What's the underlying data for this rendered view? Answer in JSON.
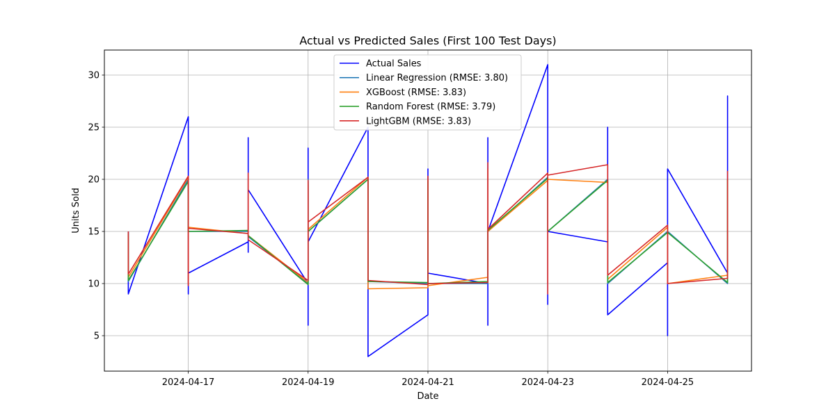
{
  "chart_data": {
    "type": "line",
    "title": "Actual vs Predicted Sales (First 100 Test Days)",
    "xlabel": "Date",
    "ylabel": "Units Sold",
    "xlim": [
      "2024-04-15T14:24",
      "2024-04-26T09:36"
    ],
    "ylim": [
      1.6,
      32.4
    ],
    "x_ticks": [
      "2024-04-17",
      "2024-04-19",
      "2024-04-21",
      "2024-04-23",
      "2024-04-25"
    ],
    "y_ticks": [
      5,
      10,
      15,
      20,
      25,
      30
    ],
    "grid": true,
    "legend_position": "top-center",
    "series": [
      {
        "name": "Actual Sales",
        "color": "#0000ff",
        "points": [
          [
            "2024-04-16",
            15
          ],
          [
            "2024-04-16",
            9
          ],
          [
            "2024-04-17",
            26
          ],
          [
            "2024-04-17",
            9
          ],
          [
            "2024-04-17",
            11
          ],
          [
            "2024-04-18",
            14
          ],
          [
            "2024-04-18",
            24
          ],
          [
            "2024-04-18",
            13
          ],
          [
            "2024-04-18",
            19
          ],
          [
            "2024-04-19",
            10
          ],
          [
            "2024-04-19",
            23
          ],
          [
            "2024-04-19",
            6
          ],
          [
            "2024-04-19",
            14
          ],
          [
            "2024-04-20",
            25
          ],
          [
            "2024-04-20",
            5
          ],
          [
            "2024-04-20",
            10
          ],
          [
            "2024-04-20",
            3
          ],
          [
            "2024-04-21",
            7
          ],
          [
            "2024-04-21",
            21
          ],
          [
            "2024-04-21",
            11
          ],
          [
            "2024-04-22",
            10
          ],
          [
            "2024-04-22",
            24
          ],
          [
            "2024-04-22",
            6
          ],
          [
            "2024-04-22",
            15
          ],
          [
            "2024-04-23",
            31
          ],
          [
            "2024-04-23",
            8
          ],
          [
            "2024-04-23",
            15
          ],
          [
            "2024-04-24",
            14
          ],
          [
            "2024-04-24",
            25
          ],
          [
            "2024-04-24",
            9
          ],
          [
            "2024-04-24",
            7
          ],
          [
            "2024-04-25",
            12
          ],
          [
            "2024-04-25",
            5
          ],
          [
            "2024-04-25",
            19
          ],
          [
            "2024-04-25",
            21
          ],
          [
            "2024-04-26",
            11
          ],
          [
            "2024-04-26",
            28
          ],
          [
            "2024-04-26",
            10.5
          ]
        ]
      },
      {
        "name": "Linear Regression (RMSE: 3.80)",
        "color": "#1f77b4",
        "points": [
          [
            "2024-04-16",
            15
          ],
          [
            "2024-04-16",
            10.2
          ],
          [
            "2024-04-17",
            20
          ],
          [
            "2024-04-17",
            15
          ],
          [
            "2024-04-18",
            15
          ],
          [
            "2024-04-18",
            14.5
          ],
          [
            "2024-04-19",
            10
          ],
          [
            "2024-04-19",
            20
          ],
          [
            "2024-04-19",
            15
          ],
          [
            "2024-04-20",
            20
          ],
          [
            "2024-04-20",
            10.2
          ],
          [
            "2024-04-21",
            10
          ],
          [
            "2024-04-21",
            20
          ],
          [
            "2024-04-21",
            10
          ],
          [
            "2024-04-22",
            10
          ],
          [
            "2024-04-22",
            15
          ],
          [
            "2024-04-23",
            20.2
          ],
          [
            "2024-04-23",
            15
          ],
          [
            "2024-04-24",
            20
          ],
          [
            "2024-04-24",
            10
          ],
          [
            "2024-04-25",
            15
          ],
          [
            "2024-04-26",
            10
          ],
          [
            "2024-04-26",
            20
          ]
        ]
      },
      {
        "name": "XGBoost (RMSE: 3.83)",
        "color": "#ff7f0e",
        "points": [
          [
            "2024-04-16",
            14.5
          ],
          [
            "2024-04-16",
            10.6
          ],
          [
            "2024-04-17",
            20.2
          ],
          [
            "2024-04-17",
            10
          ],
          [
            "2024-04-17",
            15.4
          ],
          [
            "2024-04-18",
            14.8
          ],
          [
            "2024-04-18",
            20
          ],
          [
            "2024-04-18",
            14.6
          ],
          [
            "2024-04-19",
            10.1
          ],
          [
            "2024-04-19",
            19.5
          ],
          [
            "2024-04-19",
            15.2
          ],
          [
            "2024-04-20",
            20.2
          ],
          [
            "2024-04-20",
            9.5
          ],
          [
            "2024-04-21",
            9.6
          ],
          [
            "2024-04-21",
            20
          ],
          [
            "2024-04-21",
            9.8
          ],
          [
            "2024-04-22",
            10.6
          ],
          [
            "2024-04-22",
            21
          ],
          [
            "2024-04-22",
            15
          ],
          [
            "2024-04-23",
            19.9
          ],
          [
            "2024-04-23",
            10
          ],
          [
            "2024-04-23",
            20
          ],
          [
            "2024-04-24",
            19.7
          ],
          [
            "2024-04-24",
            10.4
          ],
          [
            "2024-04-25",
            15.4
          ],
          [
            "2024-04-25",
            10
          ],
          [
            "2024-04-26",
            10.8
          ],
          [
            "2024-04-26",
            20
          ]
        ]
      },
      {
        "name": "Random Forest (RMSE: 3.79)",
        "color": "#2ca02c",
        "points": [
          [
            "2024-04-16",
            14.8
          ],
          [
            "2024-04-16",
            10.3
          ],
          [
            "2024-04-17",
            19.8
          ],
          [
            "2024-04-17",
            15
          ],
          [
            "2024-04-18",
            15.1
          ],
          [
            "2024-04-18",
            14.6
          ],
          [
            "2024-04-19",
            9.9
          ],
          [
            "2024-04-19",
            19.8
          ],
          [
            "2024-04-19",
            15
          ],
          [
            "2024-04-20",
            20
          ],
          [
            "2024-04-20",
            10.2
          ],
          [
            "2024-04-21",
            10.1
          ],
          [
            "2024-04-21",
            19.8
          ],
          [
            "2024-04-21",
            10
          ],
          [
            "2024-04-22",
            10.2
          ],
          [
            "2024-04-22",
            15.1
          ],
          [
            "2024-04-23",
            20.1
          ],
          [
            "2024-04-23",
            15
          ],
          [
            "2024-04-24",
            19.9
          ],
          [
            "2024-04-24",
            10.1
          ],
          [
            "2024-04-25",
            14.9
          ],
          [
            "2024-04-26",
            10.1
          ],
          [
            "2024-04-26",
            20
          ]
        ]
      },
      {
        "name": "LightGBM (RMSE: 3.83)",
        "color": "#d62728",
        "points": [
          [
            "2024-04-16",
            15
          ],
          [
            "2024-04-16",
            10.9
          ],
          [
            "2024-04-17",
            20.3
          ],
          [
            "2024-04-17",
            9.8
          ],
          [
            "2024-04-17",
            15.3
          ],
          [
            "2024-04-18",
            14.8
          ],
          [
            "2024-04-18",
            20.6
          ],
          [
            "2024-04-18",
            14.2
          ],
          [
            "2024-04-19",
            10.3
          ],
          [
            "2024-04-19",
            19.9
          ],
          [
            "2024-04-19",
            15.9
          ],
          [
            "2024-04-20",
            20.2
          ],
          [
            "2024-04-20",
            10.3
          ],
          [
            "2024-04-21",
            9.9
          ],
          [
            "2024-04-21",
            20.3
          ],
          [
            "2024-04-21",
            10
          ],
          [
            "2024-04-22",
            10.1
          ],
          [
            "2024-04-22",
            21.6
          ],
          [
            "2024-04-22",
            15.2
          ],
          [
            "2024-04-23",
            20.6
          ],
          [
            "2024-04-23",
            9
          ],
          [
            "2024-04-23",
            20.4
          ],
          [
            "2024-04-24",
            21.4
          ],
          [
            "2024-04-24",
            10.8
          ],
          [
            "2024-04-25",
            15.6
          ],
          [
            "2024-04-25",
            10
          ],
          [
            "2024-04-26",
            10.5
          ],
          [
            "2024-04-26",
            20.8
          ]
        ]
      }
    ]
  }
}
